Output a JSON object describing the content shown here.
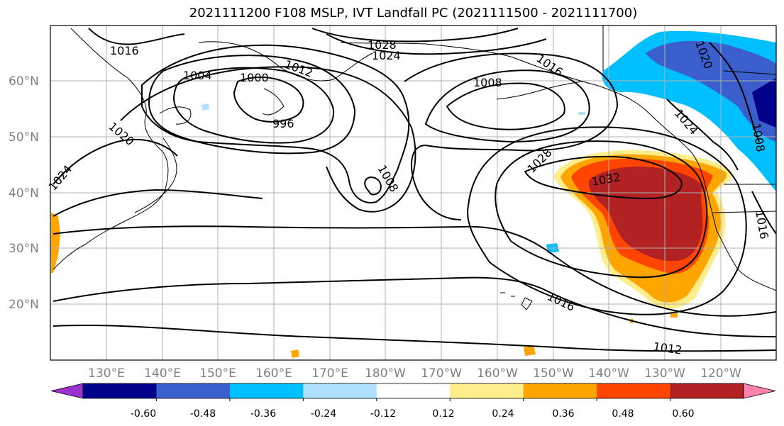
{
  "title": "2021111200 F108 MSLP, IVT Landfall PC (2021111500 - 2021111700)",
  "lat_labels": [
    "60°N",
    "50°N",
    "40°N",
    "30°N",
    "20°N"
  ],
  "lon_labels": [
    "130°E",
    "140°E",
    "150°E",
    "160°E",
    "170°E",
    "180°W",
    "170°W",
    "160°W",
    "150°W",
    "140°W",
    "130°W",
    "120°W"
  ],
  "contour_labels": [
    "1016",
    "1004",
    "1000",
    "996",
    "1012",
    "1028",
    "1024",
    "1016",
    "1008",
    "1020",
    "1024",
    "1008",
    "1028",
    "1032",
    "1024",
    "1020",
    "1008",
    "1016",
    "1016",
    "1012"
  ],
  "colorbar": {
    "tick_labels": [
      "-0.60",
      "-0.48",
      "-0.36",
      "-0.24",
      "-0.12",
      "0.12",
      "0.24",
      "0.36",
      "0.48",
      "0.60"
    ],
    "colors": [
      "#9a32cd",
      "#00008b",
      "#3a5fcd",
      "#00bfff",
      "#b0e2ff",
      "#ffffff",
      "#ffec8b",
      "#ffa500",
      "#ff4500",
      "#b22222",
      "#ff82ab"
    ]
  }
}
